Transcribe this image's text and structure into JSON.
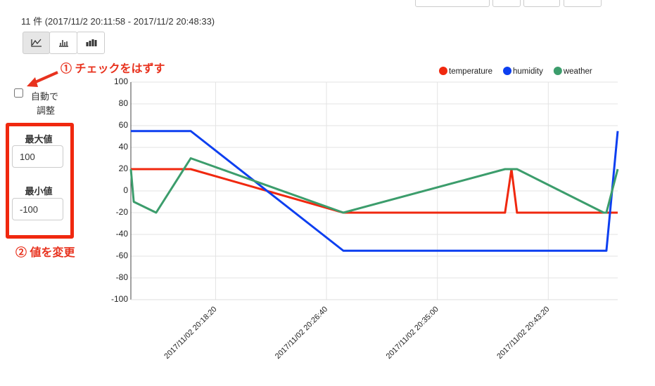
{
  "header": {
    "count": "11 件 (2017/11/2 20:11:58 - 2017/11/2 20:48:33)"
  },
  "annotations": {
    "step1": "① チェックをはずす",
    "step2": "② 値を変更"
  },
  "controls": {
    "auto_adjust": [
      "自動で",
      "調整"
    ],
    "max_label": "最大値",
    "max_value": "100",
    "min_label": "最小値",
    "min_value": "-100"
  },
  "chart_data": {
    "type": "line",
    "x": [
      "2017/11/02 20:11:58",
      "2017/11/02 20:12:11",
      "2017/11/02 20:13:52",
      "2017/11/02 20:16:28",
      "2017/11/02 20:27:56",
      "2017/11/02 20:40:05",
      "2017/11/02 20:40:34",
      "2017/11/02 20:40:59",
      "2017/11/02 20:47:30",
      "2017/11/02 20:47:42",
      "2017/11/02 20:48:33"
    ],
    "series": [
      {
        "name": "temperature",
        "color": "#f0280f",
        "values": [
          20,
          20,
          20,
          20,
          -20,
          -20,
          20,
          -20,
          -20,
          -20,
          -20
        ]
      },
      {
        "name": "humidity",
        "color": "#0d3ff0",
        "values": [
          55,
          55,
          55,
          55,
          -55,
          -55,
          -55,
          -55,
          -55,
          -55,
          55
        ]
      },
      {
        "name": "weather",
        "color": "#3c9d6c",
        "values": [
          20,
          -10,
          -20,
          30,
          -20,
          20,
          20,
          20,
          -20,
          -20,
          20
        ]
      }
    ],
    "xlim": [
      "2017/11/02 20:11:58",
      "2017/11/02 20:48:33"
    ],
    "xticks": [
      "2017/11/02 20:18:20",
      "2017/11/02 20:26:40",
      "2017/11/02 20:35:00",
      "2017/11/02 20:43:20"
    ],
    "ylim": [
      -100,
      100
    ],
    "yticks": [
      -100,
      -80,
      -60,
      -40,
      -20,
      0,
      20,
      40,
      60,
      80,
      100
    ],
    "grid": true,
    "legend": "top-right"
  }
}
